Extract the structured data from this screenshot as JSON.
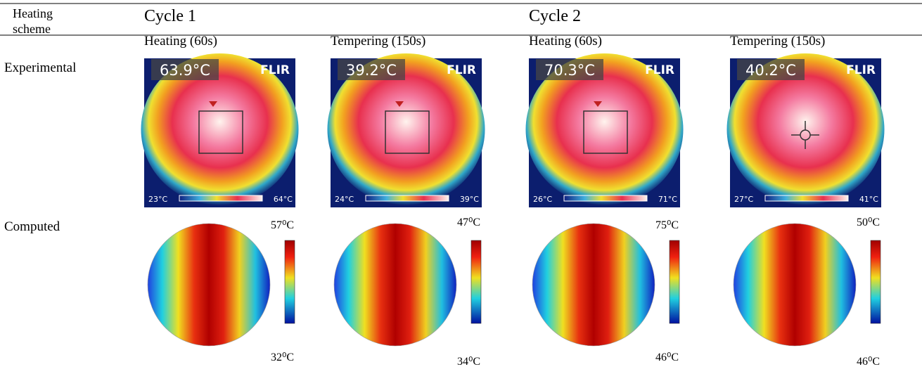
{
  "header": {
    "scheme": "Heating scheme",
    "cycles": [
      "Cycle 1",
      "Cycle 2"
    ],
    "phases": [
      "Heating (60s)",
      "Tempering (150s)",
      "Heating (60s)",
      "Tempering (150s)"
    ]
  },
  "rows": [
    {
      "label": "Experimental",
      "cells": [
        {
          "reading": "63.9°C",
          "brand": "FLIR",
          "scale_min": "23°C",
          "scale_max": "64°C"
        },
        {
          "reading": "39.2°C",
          "brand": "FLIR",
          "scale_min": "24°C",
          "scale_max": "39°C"
        },
        {
          "reading": "70.3°C",
          "brand": "FLIR",
          "scale_min": "26°C",
          "scale_max": "71°C"
        },
        {
          "reading": "40.2°C",
          "brand": "FLIR",
          "scale_min": "27°C",
          "scale_max": "41°C"
        }
      ]
    },
    {
      "label": "Computed",
      "cells": [
        {
          "max": "57⁰C",
          "min": "32⁰C"
        },
        {
          "max": "47⁰C",
          "min": "34⁰C"
        },
        {
          "max": "75⁰C",
          "min": "46⁰C"
        },
        {
          "max": "50⁰C",
          "min": "46⁰C"
        }
      ]
    }
  ]
}
